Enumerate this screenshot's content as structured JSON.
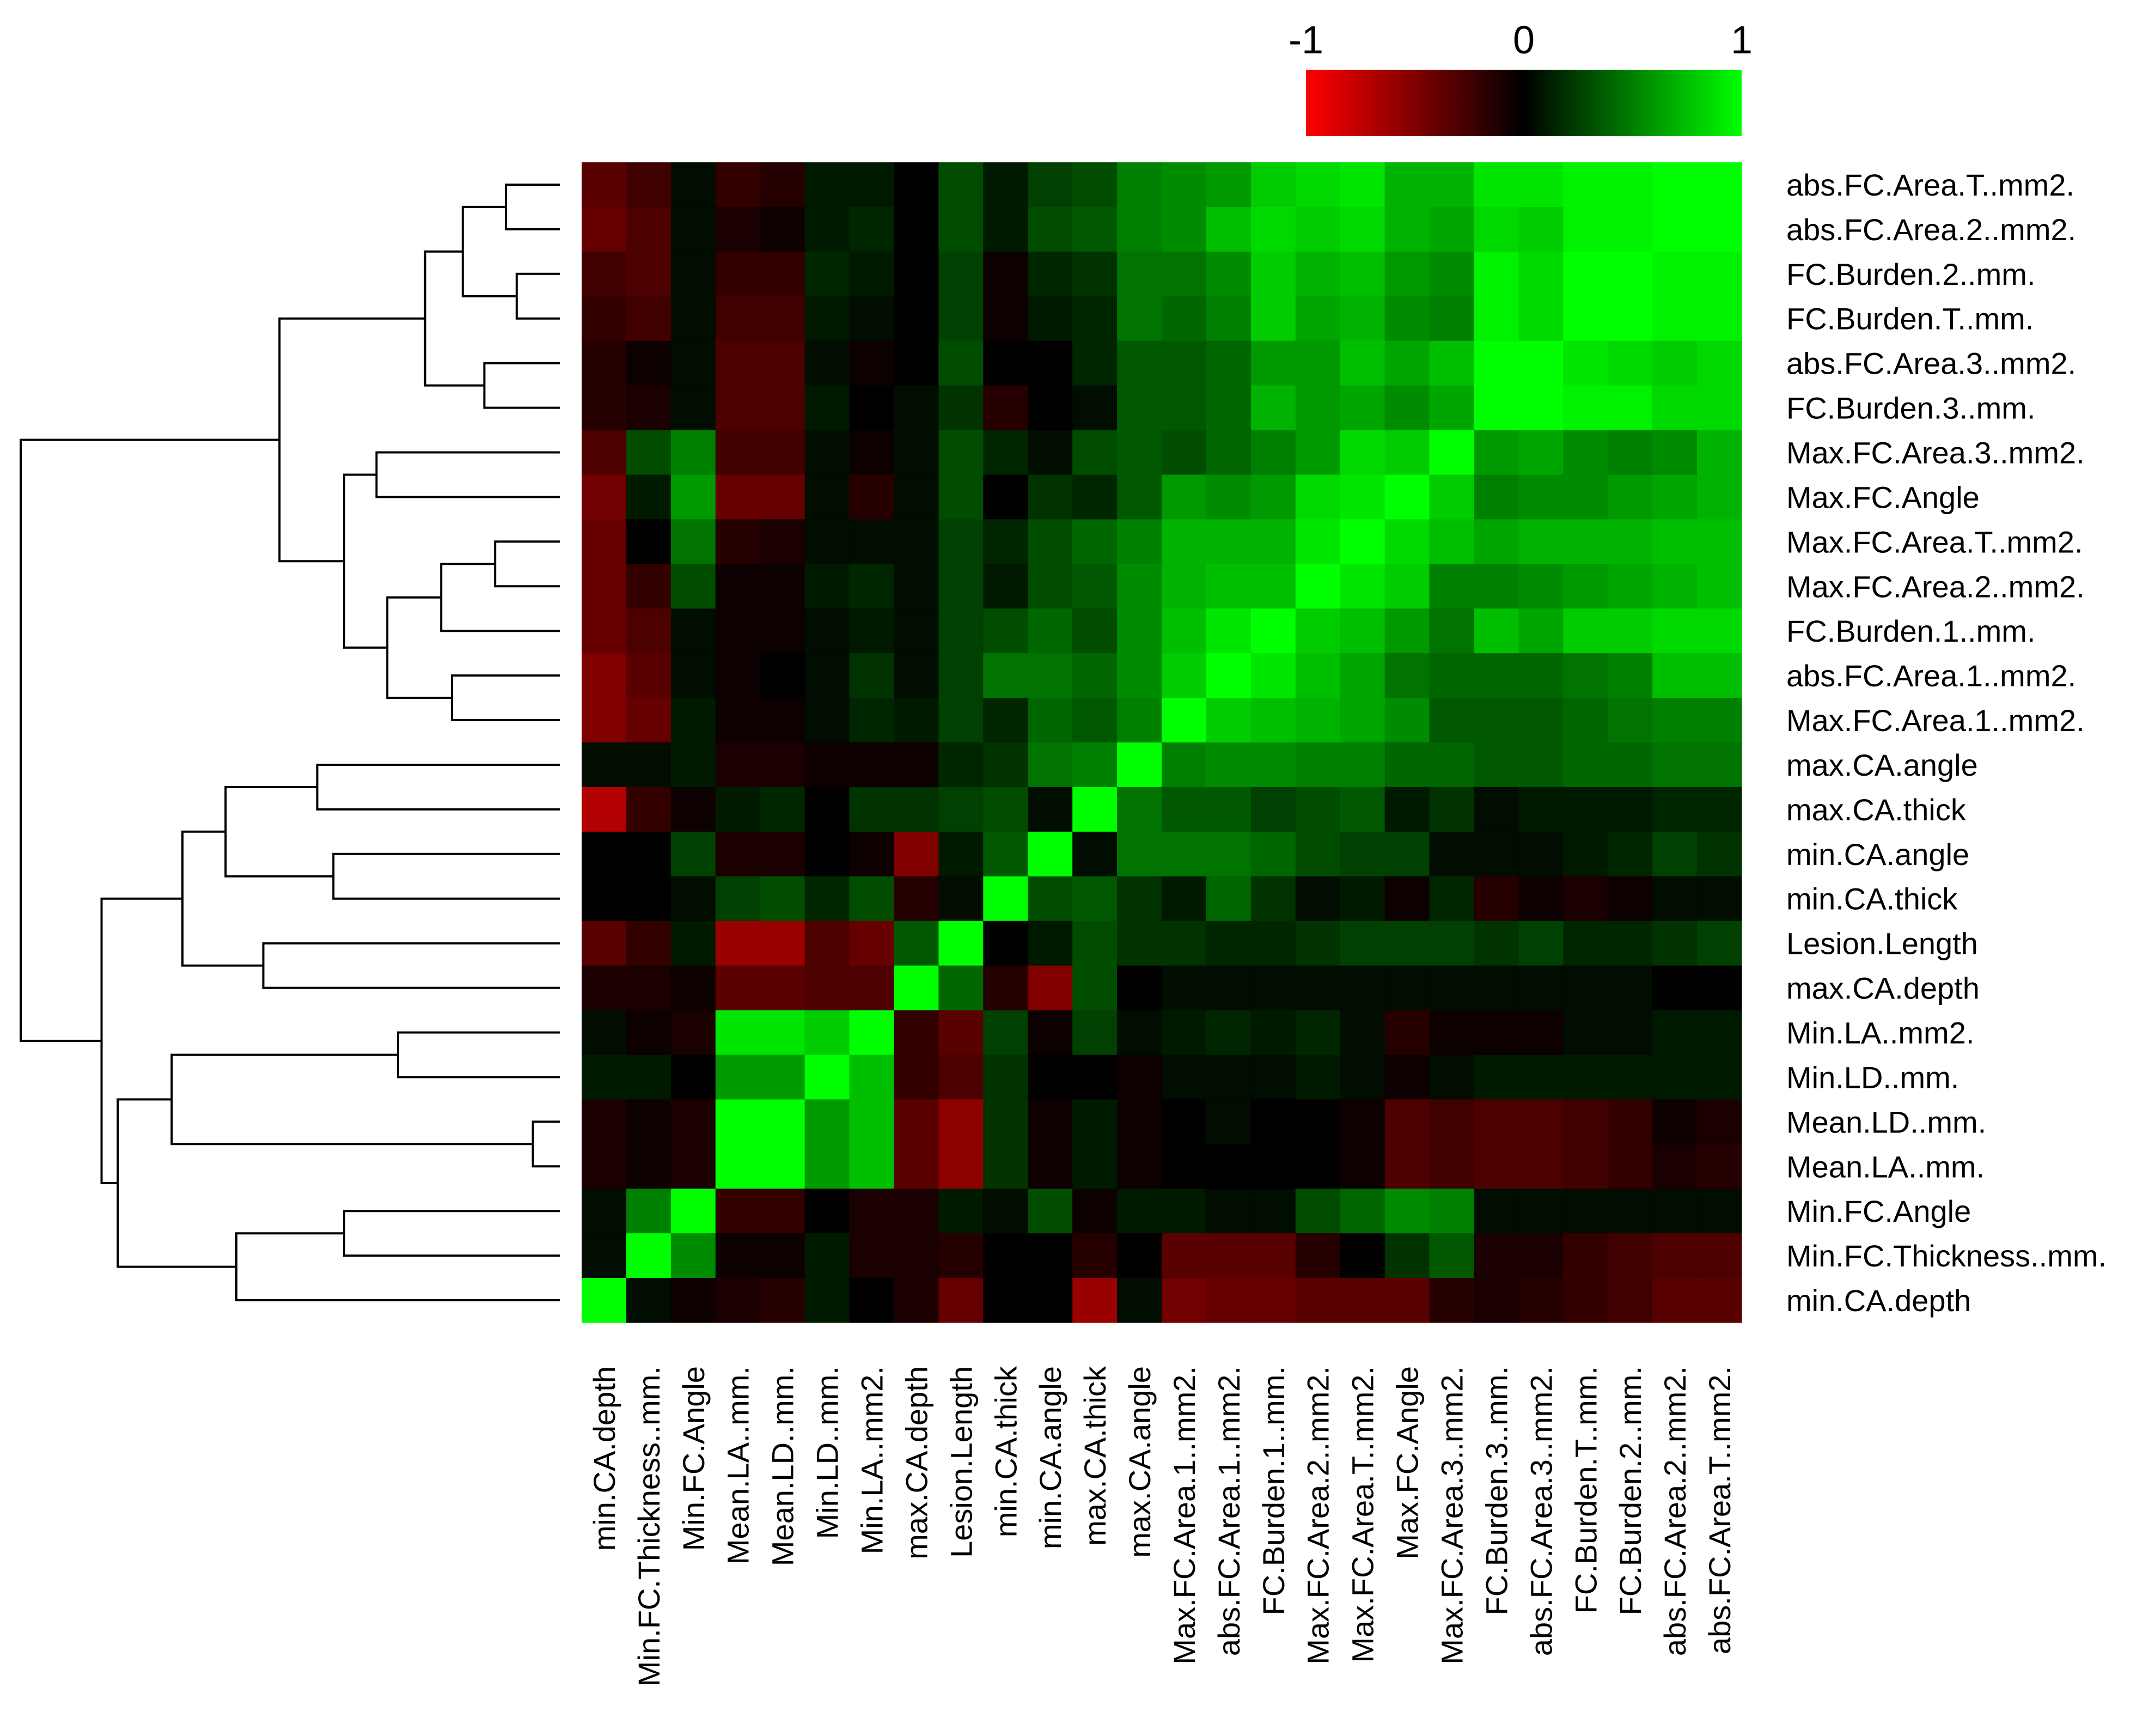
{
  "chart_data": {
    "type": "heatmap",
    "title": "",
    "row_labels": [
      "abs.FC.Area.T..mm2.",
      "abs.FC.Area.2..mm2.",
      "FC.Burden.2..mm.",
      "FC.Burden.T..mm.",
      "abs.FC.Area.3..mm2.",
      "FC.Burden.3..mm.",
      "Max.FC.Area.3..mm2.",
      "Max.FC.Angle",
      "Max.FC.Area.T..mm2.",
      "Max.FC.Area.2..mm2.",
      "FC.Burden.1..mm.",
      "abs.FC.Area.1..mm2.",
      "Max.FC.Area.1..mm2.",
      "max.CA.angle",
      "max.CA.thick",
      "min.CA.angle",
      "min.CA.thick",
      "Lesion.Length",
      "max.CA.depth",
      "Min.LA..mm2.",
      "Min.LD..mm.",
      "Mean.LD..mm.",
      "Mean.LA..mm.",
      "Min.FC.Angle",
      "Min.FC.Thickness..mm.",
      "min.CA.depth"
    ],
    "col_labels": [
      "min.CA.depth",
      "Min.FC.Thickness..mm.",
      "Min.FC.Angle",
      "Mean.LA..mm.",
      "Mean.LD..mm.",
      "Min.LD..mm.",
      "Min.LA..mm2.",
      "max.CA.depth",
      "Lesion.Length",
      "min.CA.thick",
      "min.CA.angle",
      "max.CA.thick",
      "max.CA.angle",
      "Max.FC.Area.1..mm2.",
      "abs.FC.Area.1..mm2.",
      "FC.Burden.1..mm.",
      "Max.FC.Area.2..mm2.",
      "Max.FC.Area.T..mm2.",
      "Max.FC.Angle",
      "Max.FC.Area.3..mm2.",
      "FC.Burden.3..mm.",
      "abs.FC.Area.3..mm2.",
      "FC.Burden.T..mm.",
      "FC.Burden.2..mm.",
      "abs.FC.Area.2..mm2.",
      "abs.FC.Area.T..mm2."
    ],
    "values": [
      [
        -0.35,
        -0.25,
        0.05,
        -0.2,
        -0.15,
        0.1,
        0.1,
        0.0,
        0.3,
        0.1,
        0.25,
        0.3,
        0.5,
        0.55,
        0.6,
        0.8,
        0.85,
        0.9,
        0.7,
        0.7,
        0.9,
        0.9,
        0.95,
        0.95,
        1.0,
        1.0
      ],
      [
        -0.4,
        -0.3,
        0.05,
        -0.1,
        -0.05,
        0.1,
        0.15,
        0.0,
        0.3,
        0.1,
        0.3,
        0.35,
        0.5,
        0.55,
        0.75,
        0.85,
        0.8,
        0.85,
        0.7,
        0.65,
        0.85,
        0.8,
        0.95,
        0.95,
        1.0,
        1.0
      ],
      [
        -0.25,
        -0.3,
        0.05,
        -0.2,
        -0.2,
        0.15,
        0.1,
        0.0,
        0.25,
        -0.05,
        0.15,
        0.2,
        0.45,
        0.45,
        0.55,
        0.8,
        0.7,
        0.75,
        0.6,
        0.55,
        0.95,
        0.85,
        1.0,
        1.0,
        0.95,
        0.95
      ],
      [
        -0.2,
        -0.25,
        0.05,
        -0.25,
        -0.25,
        0.1,
        0.05,
        0.0,
        0.25,
        -0.05,
        0.1,
        0.15,
        0.45,
        0.4,
        0.5,
        0.8,
        0.65,
        0.7,
        0.55,
        0.5,
        0.95,
        0.85,
        1.0,
        1.0,
        0.95,
        0.95
      ],
      [
        -0.15,
        -0.05,
        0.05,
        -0.3,
        -0.3,
        0.05,
        -0.05,
        0.0,
        0.3,
        0.0,
        0.0,
        0.15,
        0.35,
        0.35,
        0.4,
        0.6,
        0.6,
        0.75,
        0.65,
        0.75,
        1.0,
        1.0,
        0.9,
        0.85,
        0.8,
        0.85
      ],
      [
        -0.15,
        -0.1,
        0.05,
        -0.3,
        -0.3,
        0.1,
        0.0,
        0.05,
        0.2,
        -0.15,
        0.0,
        0.05,
        0.35,
        0.35,
        0.4,
        0.7,
        0.6,
        0.65,
        0.55,
        0.65,
        1.0,
        1.0,
        0.95,
        0.95,
        0.85,
        0.85
      ],
      [
        -0.3,
        0.3,
        0.5,
        -0.25,
        -0.25,
        0.05,
        -0.05,
        0.05,
        0.3,
        0.15,
        0.05,
        0.3,
        0.35,
        0.3,
        0.4,
        0.5,
        0.6,
        0.85,
        0.8,
        1.0,
        0.6,
        0.65,
        0.55,
        0.5,
        0.55,
        0.7
      ],
      [
        -0.45,
        0.1,
        0.6,
        -0.4,
        -0.4,
        0.05,
        -0.15,
        0.05,
        0.3,
        0.0,
        0.2,
        0.15,
        0.35,
        0.6,
        0.55,
        0.6,
        0.85,
        0.9,
        1.0,
        0.8,
        0.5,
        0.55,
        0.55,
        0.6,
        0.65,
        0.7
      ],
      [
        -0.4,
        0.0,
        0.45,
        -0.15,
        -0.1,
        0.05,
        0.05,
        0.05,
        0.25,
        0.15,
        0.3,
        0.4,
        0.5,
        0.7,
        0.7,
        0.7,
        0.9,
        1.0,
        0.85,
        0.75,
        0.65,
        0.7,
        0.7,
        0.7,
        0.75,
        0.75
      ],
      [
        -0.4,
        -0.2,
        0.3,
        -0.05,
        -0.05,
        0.1,
        0.15,
        0.05,
        0.25,
        0.1,
        0.3,
        0.35,
        0.55,
        0.7,
        0.75,
        0.75,
        1.0,
        0.9,
        0.8,
        0.5,
        0.5,
        0.55,
        0.6,
        0.65,
        0.7,
        0.75
      ],
      [
        -0.4,
        -0.3,
        0.05,
        -0.05,
        -0.05,
        0.05,
        0.1,
        0.05,
        0.25,
        0.3,
        0.4,
        0.3,
        0.55,
        0.75,
        0.9,
        1.0,
        0.8,
        0.75,
        0.6,
        0.45,
        0.75,
        0.65,
        0.8,
        0.8,
        0.85,
        0.85
      ],
      [
        -0.5,
        -0.35,
        0.05,
        -0.05,
        0.0,
        0.05,
        0.2,
        0.05,
        0.25,
        0.45,
        0.45,
        0.4,
        0.55,
        0.8,
        1.0,
        0.9,
        0.75,
        0.65,
        0.45,
        0.4,
        0.4,
        0.4,
        0.45,
        0.5,
        0.75,
        0.75
      ],
      [
        -0.5,
        -0.4,
        0.1,
        -0.05,
        -0.05,
        0.05,
        0.15,
        0.1,
        0.25,
        0.15,
        0.4,
        0.35,
        0.5,
        1.0,
        0.8,
        0.75,
        0.7,
        0.65,
        0.55,
        0.35,
        0.35,
        0.35,
        0.4,
        0.45,
        0.5,
        0.5
      ],
      [
        0.05,
        0.05,
        0.1,
        -0.1,
        -0.1,
        -0.05,
        -0.05,
        -0.05,
        0.15,
        0.2,
        0.45,
        0.5,
        1.0,
        0.5,
        0.55,
        0.55,
        0.5,
        0.5,
        0.4,
        0.4,
        0.35,
        0.35,
        0.4,
        0.4,
        0.45,
        0.45
      ],
      [
        -0.7,
        -0.2,
        -0.05,
        0.1,
        0.15,
        0.0,
        0.2,
        0.2,
        0.25,
        0.3,
        0.05,
        1.0,
        0.45,
        0.35,
        0.35,
        0.25,
        0.3,
        0.35,
        0.1,
        0.2,
        0.05,
        0.1,
        0.1,
        0.1,
        0.15,
        0.15
      ],
      [
        0.0,
        0.0,
        0.25,
        -0.1,
        -0.1,
        0.0,
        -0.05,
        -0.5,
        0.1,
        0.35,
        1.0,
        0.05,
        0.45,
        0.45,
        0.45,
        0.4,
        0.3,
        0.25,
        0.25,
        0.05,
        0.05,
        0.05,
        0.1,
        0.15,
        0.25,
        0.2
      ],
      [
        0.0,
        0.0,
        0.05,
        0.25,
        0.3,
        0.15,
        0.3,
        -0.15,
        0.05,
        1.0,
        0.3,
        0.35,
        0.2,
        0.1,
        0.4,
        0.2,
        0.05,
        0.1,
        -0.05,
        0.15,
        -0.15,
        -0.05,
        -0.1,
        -0.05,
        0.05,
        0.05
      ],
      [
        -0.35,
        -0.2,
        0.1,
        -0.6,
        -0.6,
        -0.3,
        -0.4,
        0.35,
        1.0,
        0.0,
        0.1,
        0.3,
        0.2,
        0.2,
        0.15,
        0.15,
        0.2,
        0.25,
        0.25,
        0.25,
        0.2,
        0.25,
        0.15,
        0.15,
        0.2,
        0.25
      ],
      [
        -0.1,
        -0.1,
        -0.05,
        -0.35,
        -0.35,
        -0.3,
        -0.3,
        1.0,
        0.4,
        -0.15,
        -0.5,
        0.3,
        0.0,
        0.05,
        0.05,
        0.05,
        0.05,
        0.05,
        0.05,
        0.05,
        0.05,
        0.05,
        0.05,
        0.05,
        0.0,
        0.0
      ],
      [
        0.05,
        -0.05,
        -0.1,
        0.9,
        0.9,
        0.8,
        1.0,
        -0.2,
        -0.35,
        0.25,
        -0.05,
        0.25,
        0.05,
        0.1,
        0.15,
        0.1,
        0.15,
        0.05,
        -0.15,
        -0.05,
        -0.05,
        -0.05,
        0.05,
        0.05,
        0.1,
        0.1
      ],
      [
        0.1,
        0.1,
        0.0,
        0.6,
        0.6,
        1.0,
        0.75,
        -0.2,
        -0.3,
        0.2,
        0.0,
        0.0,
        -0.05,
        0.05,
        0.05,
        0.05,
        0.1,
        0.05,
        -0.05,
        0.05,
        0.1,
        0.1,
        0.1,
        0.1,
        0.1,
        0.1
      ],
      [
        -0.1,
        -0.05,
        -0.1,
        1.0,
        1.0,
        0.6,
        0.75,
        -0.35,
        -0.55,
        0.2,
        -0.05,
        0.1,
        -0.05,
        0.0,
        0.05,
        0.0,
        0.0,
        -0.05,
        -0.3,
        -0.25,
        -0.3,
        -0.3,
        -0.25,
        -0.2,
        -0.05,
        -0.1
      ],
      [
        -0.1,
        -0.05,
        -0.1,
        1.0,
        1.0,
        0.6,
        0.75,
        -0.35,
        -0.55,
        0.2,
        -0.05,
        0.1,
        -0.05,
        0.0,
        0.0,
        0.0,
        0.0,
        -0.05,
        -0.3,
        -0.25,
        -0.3,
        -0.3,
        -0.25,
        -0.2,
        -0.1,
        -0.15
      ],
      [
        0.05,
        0.5,
        1.0,
        -0.2,
        -0.2,
        0.0,
        -0.1,
        -0.1,
        0.1,
        0.05,
        0.3,
        -0.05,
        0.1,
        0.1,
        0.05,
        0.05,
        0.3,
        0.4,
        0.55,
        0.5,
        0.05,
        0.05,
        0.05,
        0.05,
        0.05,
        0.05
      ],
      [
        0.05,
        1.0,
        0.55,
        -0.05,
        -0.05,
        0.1,
        -0.1,
        -0.1,
        -0.15,
        0.0,
        0.0,
        -0.15,
        0.0,
        -0.35,
        -0.35,
        -0.35,
        -0.15,
        0.0,
        0.2,
        0.35,
        -0.1,
        -0.1,
        -0.2,
        -0.25,
        -0.3,
        -0.3
      ],
      [
        1.0,
        0.05,
        -0.05,
        -0.1,
        -0.15,
        0.1,
        0.0,
        -0.1,
        -0.4,
        0.0,
        0.0,
        -0.6,
        0.05,
        -0.45,
        -0.4,
        -0.4,
        -0.35,
        -0.35,
        -0.35,
        -0.15,
        -0.1,
        -0.15,
        -0.2,
        -0.25,
        -0.35,
        -0.35
      ]
    ],
    "color_key": {
      "min_label": "-1",
      "mid_label": "0",
      "max_label": "1",
      "low_color": "#ff0000",
      "mid_color": "#000000",
      "high_color": "#00ff00"
    },
    "row_dendrogram": "shown on left"
  }
}
